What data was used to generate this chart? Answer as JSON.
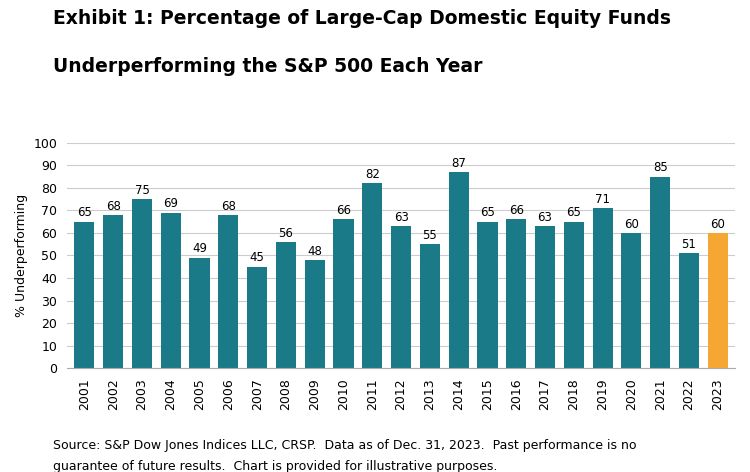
{
  "title_line1": "Exhibit 1: Percentage of Large-Cap Domestic Equity Funds",
  "title_line2": "Underperforming the S&P 500 Each Year",
  "years": [
    "2001",
    "2002",
    "2003",
    "2004",
    "2005",
    "2006",
    "2007",
    "2008",
    "2009",
    "2010",
    "2011",
    "2012",
    "2013",
    "2014",
    "2015",
    "2016",
    "2017",
    "2018",
    "2019",
    "2020",
    "2021",
    "2022",
    "2023"
  ],
  "values": [
    65,
    68,
    75,
    69,
    49,
    68,
    45,
    56,
    48,
    66,
    82,
    63,
    55,
    87,
    65,
    66,
    63,
    65,
    71,
    60,
    85,
    51,
    60
  ],
  "bar_colors": [
    "#1a7a87",
    "#1a7a87",
    "#1a7a87",
    "#1a7a87",
    "#1a7a87",
    "#1a7a87",
    "#1a7a87",
    "#1a7a87",
    "#1a7a87",
    "#1a7a87",
    "#1a7a87",
    "#1a7a87",
    "#1a7a87",
    "#1a7a87",
    "#1a7a87",
    "#1a7a87",
    "#1a7a87",
    "#1a7a87",
    "#1a7a87",
    "#1a7a87",
    "#1a7a87",
    "#1a7a87",
    "#f5a633"
  ],
  "ylabel": "% Underperforming",
  "ylim": [
    0,
    100
  ],
  "yticks": [
    0,
    10,
    20,
    30,
    40,
    50,
    60,
    70,
    80,
    90,
    100
  ],
  "source_line1": "Source: S&P Dow Jones Indices LLC, CRSP.  Data as of Dec. 31, 2023.  Past performance is no",
  "source_line2": "guarantee of future results.  Chart is provided for illustrative purposes.",
  "title_fontsize": 13.5,
  "label_fontsize": 8.5,
  "axis_fontsize": 9,
  "source_fontsize": 9,
  "background_color": "#ffffff",
  "grid_color": "#cccccc"
}
